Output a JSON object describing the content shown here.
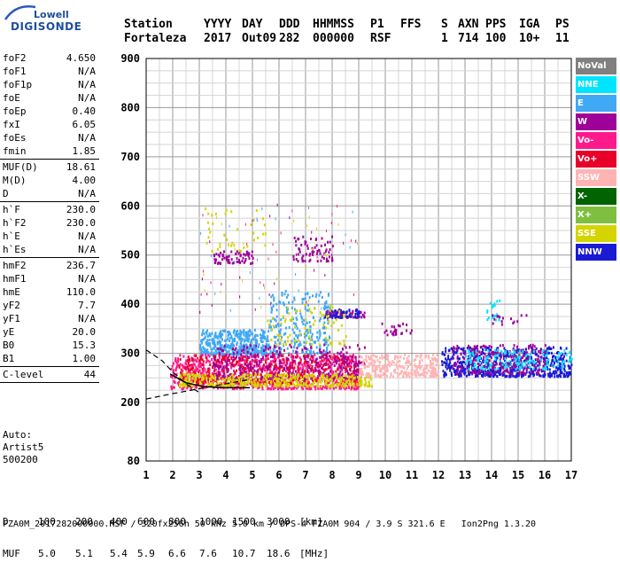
{
  "logo": {
    "line1": "Lowell",
    "line2": "DIGISONDE"
  },
  "header": {
    "labels": [
      "Station",
      "YYYY",
      "DAY",
      "DDD",
      "HHMMSS",
      "P1",
      "FFS",
      "S",
      "AXN",
      "PPS",
      "IGA",
      "PS"
    ],
    "values": [
      "Fortaleza",
      "2017",
      "Out09",
      "282",
      "000000",
      "RSF",
      "",
      "1",
      "714",
      "100",
      "10+",
      "11"
    ]
  },
  "params": [
    {
      "label": "foF2",
      "value": "4.650"
    },
    {
      "label": "foF1",
      "value": "N/A"
    },
    {
      "label": "foF1p",
      "value": "N/A"
    },
    {
      "label": "foE",
      "value": "N/A"
    },
    {
      "label": "foEp",
      "value": "0.40"
    },
    {
      "label": "fxI",
      "value": "6.05"
    },
    {
      "label": "foEs",
      "value": "N/A"
    },
    {
      "label": "fmin",
      "value": "1.85"
    },
    {
      "sep": true
    },
    {
      "label": "MUF(D)",
      "value": "18.61"
    },
    {
      "label": "M(D)",
      "value": "4.00"
    },
    {
      "label": "D",
      "value": "N/A"
    },
    {
      "sep": true
    },
    {
      "label": "h`F",
      "value": "230.0"
    },
    {
      "label": "h`F2",
      "value": "230.0"
    },
    {
      "label": "h`E",
      "value": "N/A"
    },
    {
      "label": "h`Es",
      "value": "N/A"
    },
    {
      "sep": true
    },
    {
      "label": "hmF2",
      "value": "236.7"
    },
    {
      "label": "hmF1",
      "value": "N/A"
    },
    {
      "label": "hmE",
      "value": "110.0"
    },
    {
      "label": "yF2",
      "value": "7.7"
    },
    {
      "label": "yF1",
      "value": "N/A"
    },
    {
      "label": "yE",
      "value": "20.0"
    },
    {
      "label": "B0",
      "value": "15.3"
    },
    {
      "label": "B1",
      "value": "1.00"
    },
    {
      "sep": true
    },
    {
      "label": "C-level",
      "value": "44"
    },
    {
      "sep": true
    }
  ],
  "auto": {
    "line1": "Auto:",
    "line2": "Artist5",
    "line3": "500200"
  },
  "legend": [
    {
      "label": "NoVal",
      "color": "#808080",
      "text": "#ffffff"
    },
    {
      "label": "NNE",
      "color": "#00e5ff",
      "text": "#ffffff"
    },
    {
      "label": "E",
      "color": "#3fa9f5",
      "text": "#ffffff"
    },
    {
      "label": "W",
      "color": "#a0009a",
      "text": "#ffffff"
    },
    {
      "label": "Vo-",
      "color": "#ff1a8c",
      "text": "#ffffff"
    },
    {
      "label": "Vo+",
      "color": "#e8002a",
      "text": "#ffffff"
    },
    {
      "label": "SSW",
      "color": "#ffb3b3",
      "text": "#ffffff"
    },
    {
      "label": "X-",
      "color": "#006400",
      "text": "#ffffff"
    },
    {
      "label": "X+",
      "color": "#7fbf3f",
      "text": "#ffffff"
    },
    {
      "label": "SSE",
      "color": "#d4d400",
      "text": "#ffffff"
    },
    {
      "label": "NNW",
      "color": "#1a1ad4",
      "text": "#ffffff"
    }
  ],
  "footer": {
    "row_d_label": "D",
    "row_d_values": [
      "100",
      "200",
      "400",
      "600",
      "800",
      "1000",
      "1500",
      "3000",
      "[km]"
    ],
    "row_muf_label": "MUF",
    "row_muf_values": [
      "5.0",
      "5.1",
      "5.4",
      "5.9",
      "6.6",
      "7.6",
      "10.7",
      "18.6",
      "[MHz]"
    ],
    "info": "FZA0M_2017282000000.RSF / 320fx256h 50 kHz 5.0 km / DPS-4 FZA0M 904 / 3.9 S 321.6 E   Ion2Png 1.3.20"
  },
  "chart_data": {
    "type": "scatter",
    "xlim": [
      1,
      17
    ],
    "ylim": [
      80,
      900
    ],
    "xticks": [
      1,
      2,
      3,
      4,
      5,
      6,
      7,
      8,
      9,
      10,
      11,
      12,
      13,
      14,
      15,
      16,
      17
    ],
    "yticks": [
      80,
      200,
      300,
      400,
      500,
      600,
      700,
      800,
      900
    ],
    "grid": true,
    "clusters": [
      {
        "name": "E",
        "color": "#3fa9f5",
        "x": [
          3.0,
          5.6
        ],
        "y": [
          300,
          350
        ],
        "n": 420
      },
      {
        "name": "E",
        "color": "#3fa9f5",
        "x": [
          5.6,
          7.9
        ],
        "y": [
          300,
          430
        ],
        "n": 260
      },
      {
        "name": "Vo-",
        "color": "#ff1a8c",
        "x": [
          1.9,
          9.0
        ],
        "y": [
          230,
          300
        ],
        "n": 900
      },
      {
        "name": "Vo+",
        "color": "#e8002a",
        "x": [
          2.2,
          9.0
        ],
        "y": [
          240,
          300
        ],
        "n": 420
      },
      {
        "name": "W",
        "color": "#a0009a",
        "x": [
          3.5,
          9.2
        ],
        "y": [
          250,
          320
        ],
        "n": 350
      },
      {
        "name": "SSE",
        "color": "#d4d400",
        "x": [
          2.2,
          9.5
        ],
        "y": [
          235,
          260
        ],
        "n": 420
      },
      {
        "name": "SSW",
        "color": "#ffb3b3",
        "x": [
          9.0,
          12.0
        ],
        "y": [
          255,
          300
        ],
        "n": 280
      },
      {
        "name": "NNW",
        "color": "#1a1ad4",
        "x": [
          12.1,
          17.0
        ],
        "y": [
          255,
          315
        ],
        "n": 600
      },
      {
        "name": "W",
        "color": "#a0009a",
        "x": [
          12.5,
          16.0
        ],
        "y": [
          260,
          320
        ],
        "n": 250
      },
      {
        "name": "NNE",
        "color": "#00e5ff",
        "x": [
          13.0,
          17.0
        ],
        "y": [
          270,
          310
        ],
        "n": 150
      },
      {
        "name": "W",
        "color": "#a0009a",
        "x": [
          3.5,
          5.0
        ],
        "y": [
          485,
          510
        ],
        "n": 70
      },
      {
        "name": "W",
        "color": "#a0009a",
        "x": [
          6.5,
          8.0
        ],
        "y": [
          490,
          540
        ],
        "n": 70
      },
      {
        "name": "SSE",
        "color": "#d4d400",
        "x": [
          3.2,
          5.5
        ],
        "y": [
          510,
          600
        ],
        "n": 40
      },
      {
        "name": "W",
        "color": "#a0009a",
        "x": [
          7.7,
          9.2
        ],
        "y": [
          375,
          390
        ],
        "n": 60
      },
      {
        "name": "NNW",
        "color": "#1a1ad4",
        "x": [
          7.7,
          9.0
        ],
        "y": [
          375,
          392
        ],
        "n": 50
      },
      {
        "name": "W",
        "color": "#a0009a",
        "x": [
          9.8,
          11.0
        ],
        "y": [
          340,
          365
        ],
        "n": 25
      },
      {
        "name": "NNE",
        "color": "#00e5ff",
        "x": [
          13.8,
          14.3
        ],
        "y": [
          370,
          410
        ],
        "n": 20
      },
      {
        "name": "W",
        "color": "#a0009a",
        "x": [
          14.0,
          15.5
        ],
        "y": [
          360,
          380
        ],
        "n": 15
      },
      {
        "name": "SSE",
        "color": "#d4d400",
        "x": [
          5.5,
          8.5
        ],
        "y": [
          320,
          400
        ],
        "n": 80
      }
    ],
    "dashed_curve": [
      [
        1.0,
        307
      ],
      [
        1.6,
        285
      ],
      [
        2.0,
        262
      ],
      [
        2.5,
        238
      ],
      [
        3.0,
        220
      ]
    ],
    "dashed_curve2": [
      [
        1.0,
        207
      ],
      [
        2.0,
        218
      ],
      [
        3.0,
        228
      ],
      [
        4.0,
        238
      ],
      [
        4.8,
        246
      ]
    ],
    "dashed_curve3": [
      [
        1.9,
        258
      ],
      [
        2.5,
        240
      ],
      [
        3.2,
        232
      ],
      [
        4.0,
        230
      ],
      [
        4.9,
        230
      ]
    ]
  }
}
